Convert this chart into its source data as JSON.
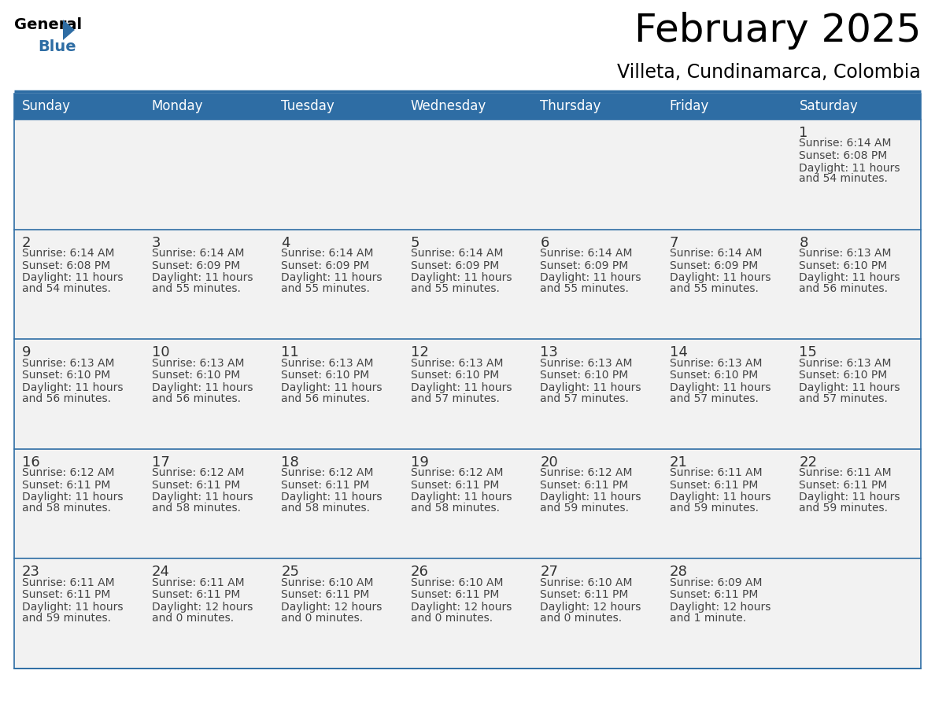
{
  "title": "February 2025",
  "subtitle": "Villeta, Cundinamarca, Colombia",
  "header_bg": "#2e6da4",
  "header_text": "#ffffff",
  "cell_bg_odd": "#f2f2f2",
  "cell_bg_even": "#ffffff",
  "day_names": [
    "Sunday",
    "Monday",
    "Tuesday",
    "Wednesday",
    "Thursday",
    "Friday",
    "Saturday"
  ],
  "days": [
    {
      "day": 1,
      "col": 6,
      "row": 0,
      "sunrise": "6:14 AM",
      "sunset": "6:08 PM",
      "daylight_line1": "Daylight: 11 hours",
      "daylight_line2": "and 54 minutes."
    },
    {
      "day": 2,
      "col": 0,
      "row": 1,
      "sunrise": "6:14 AM",
      "sunset": "6:08 PM",
      "daylight_line1": "Daylight: 11 hours",
      "daylight_line2": "and 54 minutes."
    },
    {
      "day": 3,
      "col": 1,
      "row": 1,
      "sunrise": "6:14 AM",
      "sunset": "6:09 PM",
      "daylight_line1": "Daylight: 11 hours",
      "daylight_line2": "and 55 minutes."
    },
    {
      "day": 4,
      "col": 2,
      "row": 1,
      "sunrise": "6:14 AM",
      "sunset": "6:09 PM",
      "daylight_line1": "Daylight: 11 hours",
      "daylight_line2": "and 55 minutes."
    },
    {
      "day": 5,
      "col": 3,
      "row": 1,
      "sunrise": "6:14 AM",
      "sunset": "6:09 PM",
      "daylight_line1": "Daylight: 11 hours",
      "daylight_line2": "and 55 minutes."
    },
    {
      "day": 6,
      "col": 4,
      "row": 1,
      "sunrise": "6:14 AM",
      "sunset": "6:09 PM",
      "daylight_line1": "Daylight: 11 hours",
      "daylight_line2": "and 55 minutes."
    },
    {
      "day": 7,
      "col": 5,
      "row": 1,
      "sunrise": "6:14 AM",
      "sunset": "6:09 PM",
      "daylight_line1": "Daylight: 11 hours",
      "daylight_line2": "and 55 minutes."
    },
    {
      "day": 8,
      "col": 6,
      "row": 1,
      "sunrise": "6:13 AM",
      "sunset": "6:10 PM",
      "daylight_line1": "Daylight: 11 hours",
      "daylight_line2": "and 56 minutes."
    },
    {
      "day": 9,
      "col": 0,
      "row": 2,
      "sunrise": "6:13 AM",
      "sunset": "6:10 PM",
      "daylight_line1": "Daylight: 11 hours",
      "daylight_line2": "and 56 minutes."
    },
    {
      "day": 10,
      "col": 1,
      "row": 2,
      "sunrise": "6:13 AM",
      "sunset": "6:10 PM",
      "daylight_line1": "Daylight: 11 hours",
      "daylight_line2": "and 56 minutes."
    },
    {
      "day": 11,
      "col": 2,
      "row": 2,
      "sunrise": "6:13 AM",
      "sunset": "6:10 PM",
      "daylight_line1": "Daylight: 11 hours",
      "daylight_line2": "and 56 minutes."
    },
    {
      "day": 12,
      "col": 3,
      "row": 2,
      "sunrise": "6:13 AM",
      "sunset": "6:10 PM",
      "daylight_line1": "Daylight: 11 hours",
      "daylight_line2": "and 57 minutes."
    },
    {
      "day": 13,
      "col": 4,
      "row": 2,
      "sunrise": "6:13 AM",
      "sunset": "6:10 PM",
      "daylight_line1": "Daylight: 11 hours",
      "daylight_line2": "and 57 minutes."
    },
    {
      "day": 14,
      "col": 5,
      "row": 2,
      "sunrise": "6:13 AM",
      "sunset": "6:10 PM",
      "daylight_line1": "Daylight: 11 hours",
      "daylight_line2": "and 57 minutes."
    },
    {
      "day": 15,
      "col": 6,
      "row": 2,
      "sunrise": "6:13 AM",
      "sunset": "6:10 PM",
      "daylight_line1": "Daylight: 11 hours",
      "daylight_line2": "and 57 minutes."
    },
    {
      "day": 16,
      "col": 0,
      "row": 3,
      "sunrise": "6:12 AM",
      "sunset": "6:11 PM",
      "daylight_line1": "Daylight: 11 hours",
      "daylight_line2": "and 58 minutes."
    },
    {
      "day": 17,
      "col": 1,
      "row": 3,
      "sunrise": "6:12 AM",
      "sunset": "6:11 PM",
      "daylight_line1": "Daylight: 11 hours",
      "daylight_line2": "and 58 minutes."
    },
    {
      "day": 18,
      "col": 2,
      "row": 3,
      "sunrise": "6:12 AM",
      "sunset": "6:11 PM",
      "daylight_line1": "Daylight: 11 hours",
      "daylight_line2": "and 58 minutes."
    },
    {
      "day": 19,
      "col": 3,
      "row": 3,
      "sunrise": "6:12 AM",
      "sunset": "6:11 PM",
      "daylight_line1": "Daylight: 11 hours",
      "daylight_line2": "and 58 minutes."
    },
    {
      "day": 20,
      "col": 4,
      "row": 3,
      "sunrise": "6:12 AM",
      "sunset": "6:11 PM",
      "daylight_line1": "Daylight: 11 hours",
      "daylight_line2": "and 59 minutes."
    },
    {
      "day": 21,
      "col": 5,
      "row": 3,
      "sunrise": "6:11 AM",
      "sunset": "6:11 PM",
      "daylight_line1": "Daylight: 11 hours",
      "daylight_line2": "and 59 minutes."
    },
    {
      "day": 22,
      "col": 6,
      "row": 3,
      "sunrise": "6:11 AM",
      "sunset": "6:11 PM",
      "daylight_line1": "Daylight: 11 hours",
      "daylight_line2": "and 59 minutes."
    },
    {
      "day": 23,
      "col": 0,
      "row": 4,
      "sunrise": "6:11 AM",
      "sunset": "6:11 PM",
      "daylight_line1": "Daylight: 11 hours",
      "daylight_line2": "and 59 minutes."
    },
    {
      "day": 24,
      "col": 1,
      "row": 4,
      "sunrise": "6:11 AM",
      "sunset": "6:11 PM",
      "daylight_line1": "Daylight: 12 hours",
      "daylight_line2": "and 0 minutes."
    },
    {
      "day": 25,
      "col": 2,
      "row": 4,
      "sunrise": "6:10 AM",
      "sunset": "6:11 PM",
      "daylight_line1": "Daylight: 12 hours",
      "daylight_line2": "and 0 minutes."
    },
    {
      "day": 26,
      "col": 3,
      "row": 4,
      "sunrise": "6:10 AM",
      "sunset": "6:11 PM",
      "daylight_line1": "Daylight: 12 hours",
      "daylight_line2": "and 0 minutes."
    },
    {
      "day": 27,
      "col": 4,
      "row": 4,
      "sunrise": "6:10 AM",
      "sunset": "6:11 PM",
      "daylight_line1": "Daylight: 12 hours",
      "daylight_line2": "and 0 minutes."
    },
    {
      "day": 28,
      "col": 5,
      "row": 4,
      "sunrise": "6:09 AM",
      "sunset": "6:11 PM",
      "daylight_line1": "Daylight: 12 hours",
      "daylight_line2": "and 1 minute."
    }
  ],
  "num_rows": 5,
  "line_color": "#2e6da4",
  "text_color": "#444444",
  "day_number_color": "#333333",
  "title_fontsize": 36,
  "subtitle_fontsize": 17,
  "header_fontsize": 12,
  "day_num_fontsize": 13,
  "cell_text_fontsize": 10
}
